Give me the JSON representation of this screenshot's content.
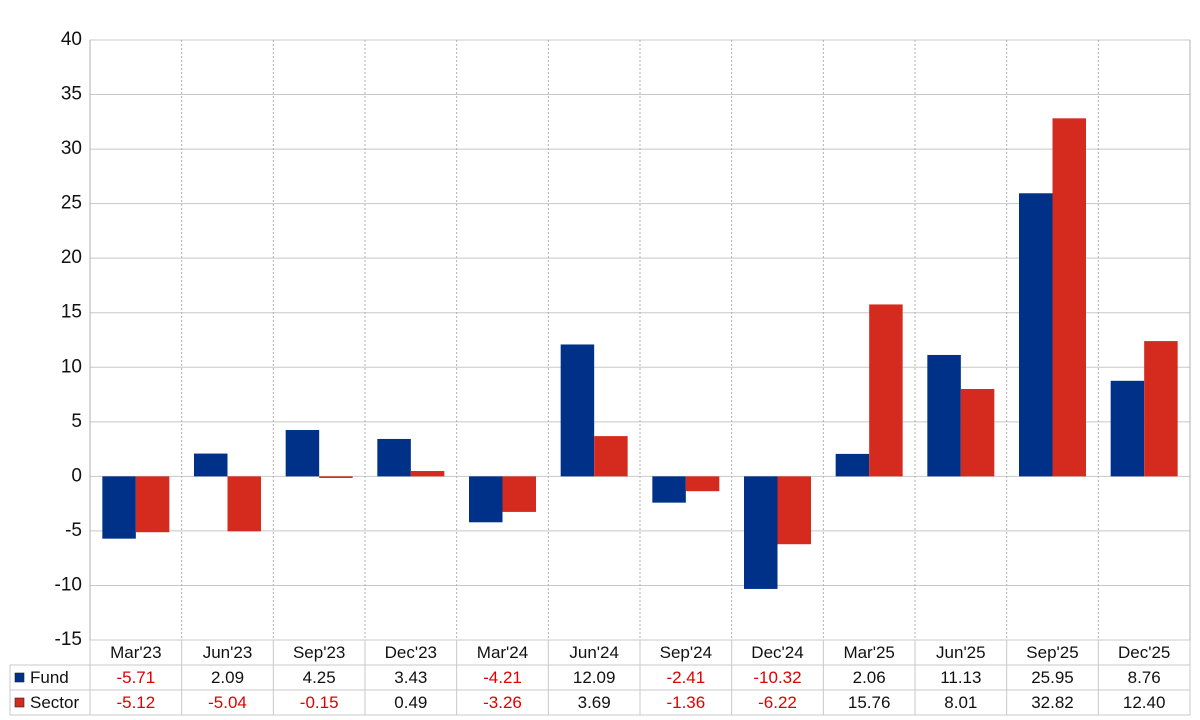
{
  "chart_data": {
    "type": "bar",
    "categories": [
      "Mar'23",
      "Jun'23",
      "Sep'23",
      "Dec'23",
      "Mar'24",
      "Jun'24",
      "Sep'24",
      "Dec'24",
      "Mar'25",
      "Jun'25",
      "Sep'25",
      "Dec'25"
    ],
    "series": [
      {
        "name": "Fund",
        "color": "#003189",
        "values": [
          -5.71,
          2.09,
          4.25,
          3.43,
          -4.21,
          12.09,
          -2.41,
          -10.32,
          2.06,
          11.13,
          25.95,
          8.76
        ]
      },
      {
        "name": "Sector",
        "color": "#d52b1e",
        "values": [
          -5.12,
          -5.04,
          -0.15,
          0.49,
          -3.26,
          3.69,
          -1.36,
          -6.22,
          15.76,
          8.01,
          32.82,
          12.4
        ],
        "value_labels": [
          "-5.12",
          "-5.04",
          "-0.15",
          "0.49",
          "-3.26",
          "3.69",
          "-1.36",
          "-6.22",
          "15.76",
          "8.01",
          "32.82",
          "12.40"
        ]
      }
    ],
    "ylim": [
      -15,
      40
    ],
    "yticks": [
      -15,
      -10,
      -5,
      0,
      5,
      10,
      15,
      20,
      25,
      30,
      35,
      40
    ],
    "grid": true,
    "negative_color": "#e00000"
  }
}
